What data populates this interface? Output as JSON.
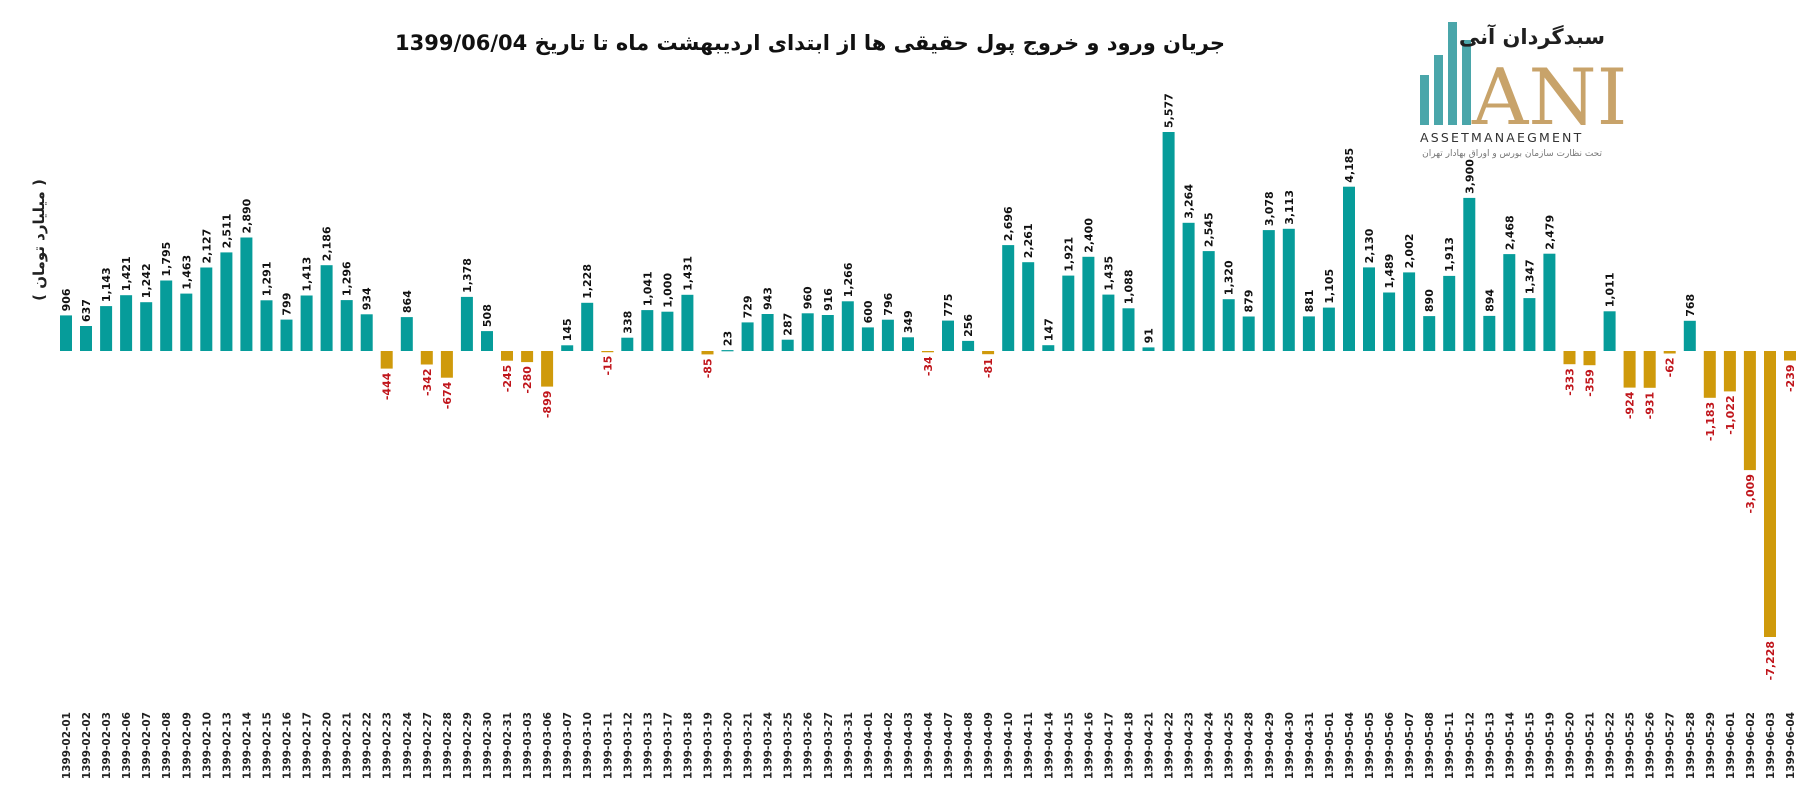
{
  "logo": {
    "persian_name": "سبدگردان آنی",
    "letters": "ANI",
    "english": "ASSETMANAEGMENT",
    "subtitle": "تحت نظارت سازمان بورس و اوراق بهادار تهران"
  },
  "colors": {
    "positive": "#069c9a",
    "negative": "#cf9a0b",
    "negative_label": "#c0151b",
    "positive_label": "#111111",
    "logo_teal": "#4aa6aa",
    "logo_gold": "#c8a36a"
  },
  "chart_data": {
    "type": "bar",
    "title": "جریان ورود و خروج پول حقیقی ها از ابتدای اردیبهشت ماه تا تاریخ 1399/06/04",
    "ylabel": "( میلیارد تومان )",
    "xlabel": "",
    "ylim": [
      -7228,
      5577
    ],
    "grid": false,
    "legend": "none",
    "categories": [
      "1399-02-01",
      "1399-02-02",
      "1399-02-03",
      "1399-02-06",
      "1399-02-07",
      "1399-02-08",
      "1399-02-09",
      "1399-02-10",
      "1399-02-13",
      "1399-02-14",
      "1399-02-15",
      "1399-02-16",
      "1399-02-17",
      "1399-02-20",
      "1399-02-21",
      "1399-02-22",
      "1399-02-23",
      "1399-02-24",
      "1399-02-27",
      "1399-02-28",
      "1399-02-29",
      "1399-02-30",
      "1399-02-31",
      "1399-03-03",
      "1399-03-06",
      "1399-03-07",
      "1399-03-10",
      "1399-03-11",
      "1399-03-12",
      "1399-03-13",
      "1399-03-17",
      "1399-03-18",
      "1399-03-19",
      "1399-03-20",
      "1399-03-21",
      "1399-03-24",
      "1399-03-25",
      "1399-03-26",
      "1399-03-27",
      "1399-03-31",
      "1399-04-01",
      "1399-04-02",
      "1399-04-03",
      "1399-04-04",
      "1399-04-07",
      "1399-04-08",
      "1399-04-09",
      "1399-04-10",
      "1399-04-11",
      "1399-04-14",
      "1399-04-15",
      "1399-04-16",
      "1399-04-17",
      "1399-04-18",
      "1399-04-21",
      "1399-04-22",
      "1399-04-23",
      "1399-04-24",
      "1399-04-25",
      "1399-04-28",
      "1399-04-29",
      "1399-04-30",
      "1399-04-31",
      "1399-05-01",
      "1399-05-04",
      "1399-05-05",
      "1399-05-06",
      "1399-05-07",
      "1399-05-08",
      "1399-05-11",
      "1399-05-12",
      "1399-05-13",
      "1399-05-14",
      "1399-05-15",
      "1399-05-19",
      "1399-05-20",
      "1399-05-21",
      "1399-05-22",
      "1399-05-25",
      "1399-05-26",
      "1399-05-27",
      "1399-05-28",
      "1399-05-29",
      "1399-06-01",
      "1399-06-02",
      "1399-06-03",
      "1399-06-04"
    ],
    "values": [
      906,
      637,
      1143,
      1421,
      1242,
      1795,
      1463,
      2127,
      2511,
      2890,
      1291,
      799,
      1413,
      2186,
      1296,
      934,
      -444,
      864,
      -342,
      -674,
      1378,
      508,
      -245,
      -280,
      -899,
      145,
      1228,
      -15,
      338,
      1041,
      1000,
      1431,
      -85,
      23,
      729,
      943,
      287,
      960,
      916,
      1266,
      600,
      796,
      349,
      -34,
      775,
      256,
      -81,
      2696,
      2261,
      147,
      1921,
      2400,
      1435,
      1088,
      91,
      5577,
      3264,
      2545,
      1320,
      879,
      3078,
      3113,
      881,
      1105,
      4185,
      2130,
      1489,
      2002,
      890,
      1913,
      3900,
      894,
      2468,
      1347,
      2479,
      -333,
      -359,
      1011,
      -924,
      -931,
      -62,
      768,
      -1183,
      -1022,
      -3009,
      -7228,
      -239
    ],
    "data_labels": [
      "906",
      "637",
      "1,143",
      "1,421",
      "1,242",
      "1,795",
      "1,463",
      "2,127",
      "2,511",
      "2,890",
      "1,291",
      "799",
      "1,413",
      "2,186",
      "1,296",
      "934",
      "-444",
      "864",
      "-342",
      "-674",
      "1,378",
      "508",
      "-245",
      "-280",
      "-899",
      "145",
      "1,228",
      "-15",
      "338",
      "1,041",
      "1,000",
      "1,431",
      "-85",
      "23",
      "729",
      "943",
      "287",
      "960",
      "916",
      "1,266",
      "600",
      "796",
      "349",
      "-34",
      "775",
      "256",
      "-81",
      "2,696",
      "2,261",
      "147",
      "1,921",
      "2,400",
      "1,435",
      "1,088",
      "91",
      "5,577",
      "3,264",
      "2,545",
      "1,320",
      "879",
      "3,078",
      "3,113",
      "881",
      "1,105",
      "4,185",
      "2,130",
      "1,489",
      "2,002",
      "890",
      "1,913",
      "3,900",
      "894",
      "2,468",
      "1,347",
      "2,479",
      "-333",
      "-359",
      "1,011",
      "-924",
      "-931",
      "-62",
      "768",
      "-1,183",
      "-1,022",
      "-3,009",
      "-7,228",
      "-239"
    ]
  }
}
